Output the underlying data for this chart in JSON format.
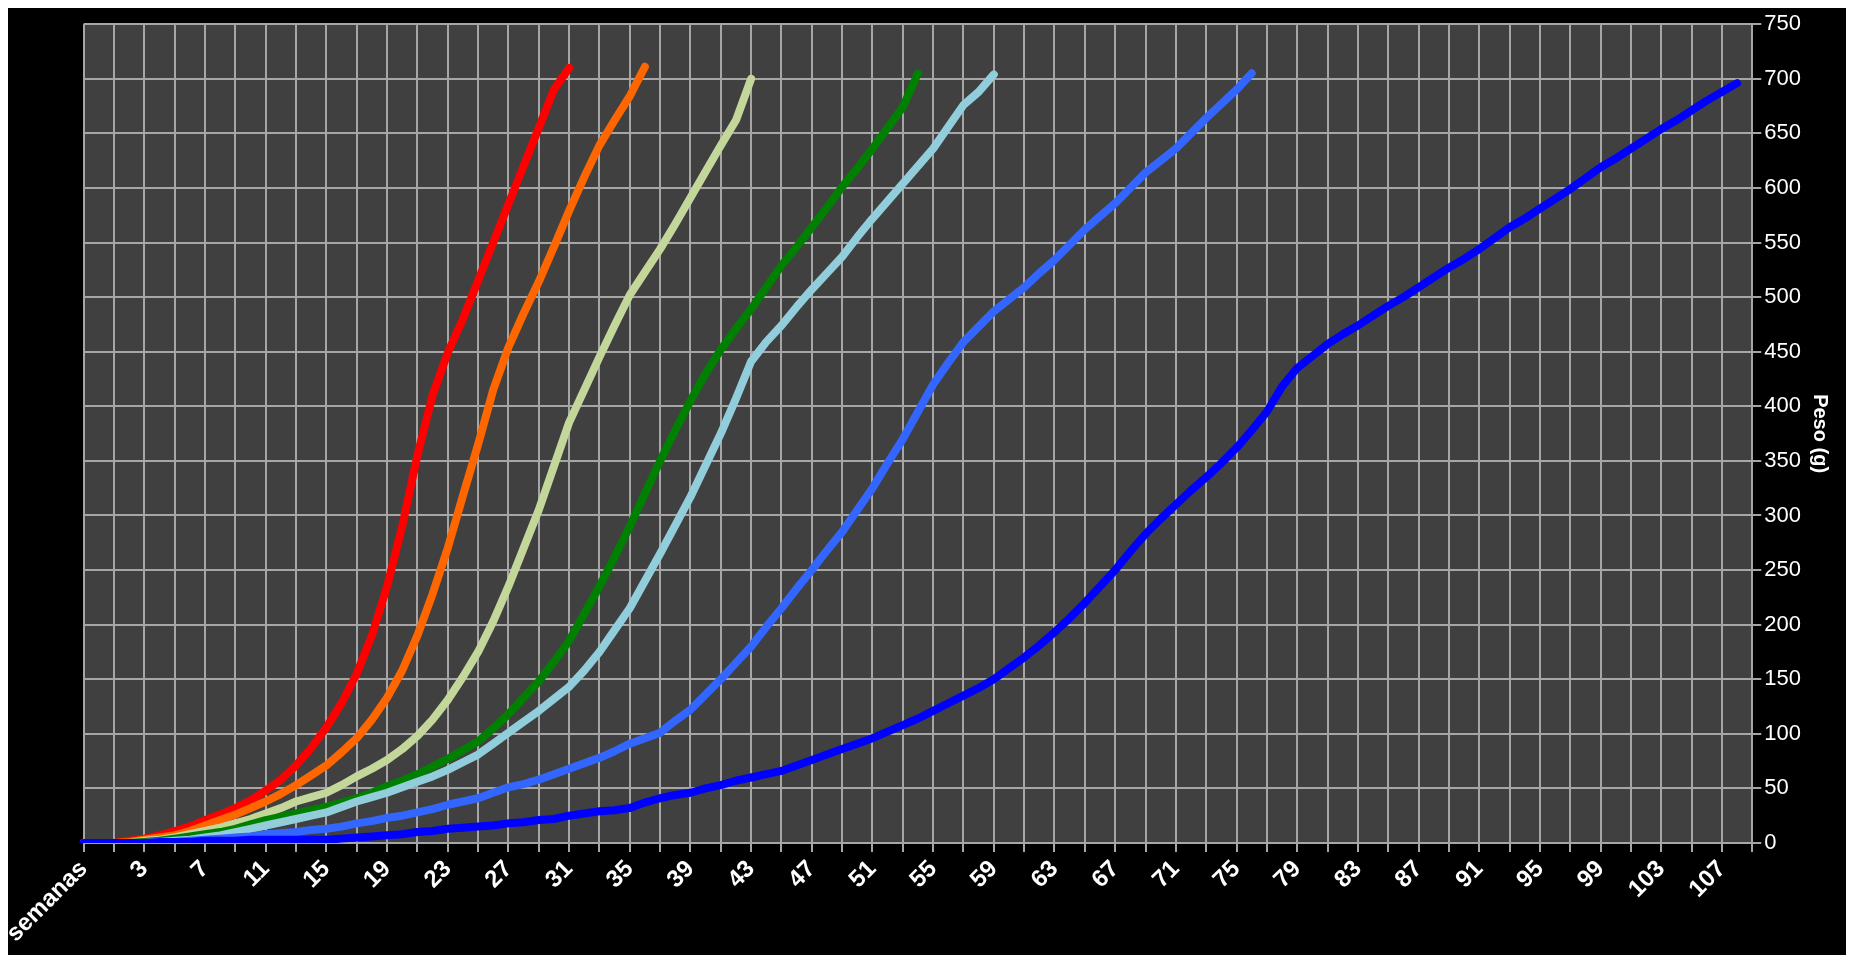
{
  "chart_data": {
    "type": "line",
    "ylabel": "Peso (g)",
    "categories": [
      "semanas",
      null,
      null,
      null,
      "3",
      null,
      null,
      null,
      "7",
      null,
      null,
      null,
      "11",
      null,
      null,
      null,
      "15",
      null,
      null,
      null,
      "19",
      null,
      null,
      null,
      "23",
      null,
      null,
      null,
      "27",
      null,
      null,
      null,
      "31",
      null,
      null,
      null,
      "35",
      null,
      null,
      null,
      "39",
      null,
      null,
      null,
      "43",
      null,
      null,
      null,
      "47",
      null,
      null,
      null,
      "51",
      null,
      null,
      null,
      "55",
      null,
      null,
      null,
      "59",
      null,
      null,
      null,
      "63",
      null,
      null,
      null,
      "67",
      null,
      null,
      null,
      "71",
      null,
      null,
      null,
      "75",
      null,
      null,
      null,
      "79",
      null,
      null,
      null,
      "83",
      null,
      null,
      null,
      "87",
      null,
      null,
      null,
      "91",
      null,
      null,
      null,
      "95",
      null,
      null,
      null,
      "99",
      null,
      null,
      null,
      "103",
      null,
      null,
      null,
      "107",
      null,
      null
    ],
    "series": [
      {
        "color": "#ff0000",
        "values": [
          0,
          0,
          0,
          2,
          4,
          7,
          11,
          15,
          21,
          26,
          32,
          39,
          48,
          58,
          71,
          87,
          106,
          128,
          155,
          190,
          235,
          290,
          355,
          410,
          449,
          480,
          515,
          550,
          585,
          620,
          655,
          690,
          710,
          null,
          null,
          null,
          null,
          null,
          null,
          null,
          null,
          null,
          null,
          null,
          null,
          null,
          null,
          null,
          null,
          null,
          null,
          null,
          null,
          null,
          null,
          null,
          null,
          null,
          null,
          null,
          null,
          null,
          null,
          null,
          null,
          null,
          null,
          null,
          null,
          null,
          null,
          null,
          null,
          null,
          null,
          null,
          null,
          null,
          null,
          null,
          null,
          null,
          null,
          null,
          null,
          null,
          null,
          null,
          null,
          null,
          null,
          null,
          null,
          null,
          null,
          null,
          null,
          null,
          null,
          null,
          null,
          null,
          null,
          null,
          null,
          null,
          null,
          null,
          null,
          null,
          null
        ]
      },
      {
        "color": "#ff6600",
        "values": [
          0,
          0,
          0,
          1,
          3,
          5,
          7,
          11,
          16,
          21,
          26,
          32,
          38,
          45,
          53,
          62,
          71,
          83,
          96,
          113,
          133,
          158,
          190,
          228,
          270,
          318,
          365,
          415,
          454,
          485,
          514,
          546,
          579,
          610,
          639,
          662,
          684,
          711,
          null,
          null,
          null,
          null,
          null,
          null,
          null,
          null,
          null,
          null,
          null,
          null,
          null,
          null,
          null,
          null,
          null,
          null,
          null,
          null,
          null,
          null,
          null,
          null,
          null,
          null,
          null,
          null,
          null,
          null,
          null,
          null,
          null,
          null,
          null,
          null,
          null,
          null,
          null,
          null,
          null,
          null,
          null,
          null,
          null,
          null,
          null,
          null,
          null,
          null,
          null,
          null,
          null,
          null,
          null,
          null,
          null,
          null,
          null,
          null,
          null,
          null,
          null,
          null,
          null,
          null,
          null,
          null,
          null,
          null,
          null,
          null,
          null
        ]
      },
      {
        "color": "#c4d79b",
        "values": [
          null,
          null,
          0,
          0,
          2,
          3,
          5,
          8,
          11,
          14,
          18,
          22,
          27,
          32,
          38,
          42,
          46,
          53,
          61,
          68,
          76,
          86,
          98,
          113,
          131,
          152,
          175,
          203,
          235,
          270,
          305,
          345,
          385,
          415,
          445,
          474,
          502,
          523,
          544,
          567,
          591,
          615,
          639,
          662,
          700,
          null,
          null,
          null,
          null,
          null,
          null,
          null,
          null,
          null,
          null,
          null,
          null,
          null,
          null,
          null,
          null,
          null,
          null,
          null,
          null,
          null,
          null,
          null,
          null,
          null,
          null,
          null,
          null,
          null,
          null,
          null,
          null,
          null,
          null,
          null,
          null,
          null,
          null,
          null,
          null,
          null,
          null,
          null,
          null,
          null,
          null,
          null,
          null,
          null,
          null,
          null,
          null,
          null,
          null,
          null,
          null,
          null,
          null,
          null,
          null,
          null,
          null,
          null,
          null,
          null,
          null
        ]
      },
      {
        "color": "#008000",
        "values": [
          null,
          null,
          0,
          0,
          1,
          2,
          4,
          6,
          8,
          10,
          13,
          17,
          21,
          24,
          27,
          30,
          33,
          37,
          41,
          46,
          52,
          57,
          63,
          70,
          77,
          85,
          93,
          105,
          118,
          133,
          148,
          166,
          185,
          210,
          235,
          262,
          290,
          320,
          350,
          378,
          405,
          430,
          452,
          471,
          489,
          509,
          529,
          546,
          564,
          582,
          601,
          618,
          636,
          655,
          674,
          705,
          null,
          null,
          null,
          null,
          null,
          null,
          null,
          null,
          null,
          null,
          null,
          null,
          null,
          null,
          null,
          null,
          null,
          null,
          null,
          null,
          null,
          null,
          null,
          null,
          null,
          null,
          null,
          null,
          null,
          null,
          null,
          null,
          null,
          null,
          null,
          null,
          null,
          null,
          null,
          null,
          null,
          null,
          null,
          null,
          null,
          null,
          null,
          null,
          null,
          null,
          null,
          null,
          null,
          null,
          null
        ]
      },
      {
        "color": "#92cddc",
        "values": [
          null,
          null,
          null,
          null,
          0,
          1,
          2,
          3,
          5,
          7,
          10,
          13,
          16,
          19,
          22,
          25,
          28,
          33,
          38,
          42,
          46,
          51,
          56,
          61,
          67,
          74,
          81,
          91,
          101,
          111,
          121,
          132,
          143,
          158,
          175,
          195,
          215,
          240,
          265,
          291,
          317,
          346,
          375,
          407,
          441,
          459,
          474,
          491,
          507,
          522,
          537,
          555,
          572,
          588,
          604,
          620,
          636,
          656,
          676,
          688,
          704,
          null,
          null,
          null,
          null,
          null,
          null,
          null,
          null,
          null,
          null,
          null,
          null,
          null,
          null,
          null,
          null,
          null,
          null,
          null,
          null,
          null,
          null,
          null,
          null,
          null,
          null,
          null,
          null,
          null,
          null,
          null,
          null,
          null,
          null,
          null,
          null,
          null,
          null,
          null,
          null,
          null,
          null,
          null,
          null,
          null,
          null,
          null,
          null,
          null,
          null
        ]
      },
      {
        "color": "#3366ff",
        "values": [
          null,
          null,
          null,
          0,
          0,
          0,
          1,
          2,
          3,
          4,
          5,
          6,
          8,
          9,
          10,
          12,
          13,
          15,
          18,
          20,
          23,
          25,
          28,
          31,
          35,
          38,
          41,
          46,
          51,
          54,
          58,
          63,
          68,
          73,
          78,
          84,
          91,
          96,
          101,
          112,
          122,
          136,
          150,
          165,
          180,
          198,
          215,
          233,
          250,
          268,
          285,
          305,
          325,
          348,
          370,
          395,
          420,
          440,
          459,
          473,
          487,
          498,
          509,
          522,
          534,
          548,
          562,
          574,
          586,
          600,
          614,
          625,
          636,
          650,
          664,
          677,
          690,
          705,
          null,
          null,
          null,
          null,
          null,
          null,
          null,
          null,
          null,
          null,
          null,
          null,
          null,
          null,
          null,
          null,
          null,
          null,
          null,
          null,
          null,
          null,
          null,
          null,
          null,
          null,
          null,
          null,
          null,
          null,
          null,
          null,
          null
        ]
      },
      {
        "color": "#0000ff",
        "values": [
          0,
          0,
          0,
          0,
          0,
          1,
          1,
          1,
          2,
          2,
          2,
          3,
          3,
          3,
          3,
          3,
          3,
          4,
          5,
          6,
          7,
          8,
          10,
          11,
          13,
          14,
          15,
          16,
          18,
          19,
          21,
          22,
          25,
          27,
          29,
          30,
          32,
          37,
          41,
          44,
          46,
          50,
          53,
          57,
          60,
          63,
          66,
          71,
          76,
          81,
          86,
          91,
          96,
          102,
          108,
          114,
          121,
          128,
          135,
          142,
          150,
          160,
          170,
          181,
          193,
          206,
          220,
          235,
          250,
          267,
          283,
          297,
          310,
          323,
          335,
          348,
          362,
          378,
          395,
          418,
          435,
          446,
          457,
          466,
          474,
          483,
          492,
          500,
          509,
          518,
          527,
          535,
          544,
          554,
          564,
          572,
          581,
          590,
          599,
          609,
          619,
          627,
          636,
          645,
          654,
          662,
          671,
          680,
          688,
          696,
          null
        ]
      }
    ],
    "ylim": [
      0,
      750
    ],
    "yticks": [
      0,
      50,
      100,
      150,
      200,
      250,
      300,
      350,
      400,
      450,
      500,
      550,
      600,
      650,
      700,
      750
    ],
    "grid": true,
    "legend": false,
    "marker": "none",
    "line_style": "solid"
  }
}
